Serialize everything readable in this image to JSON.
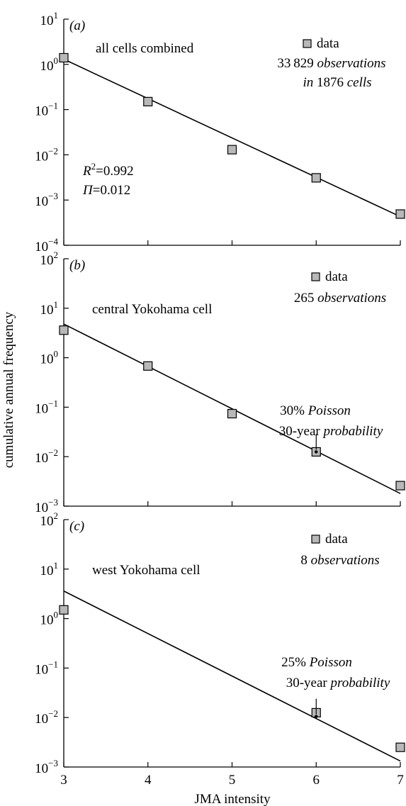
{
  "shared": {
    "ylabel": "cumulative annual frequency",
    "xlabel": "JMA intensity",
    "x_ticks": [
      3,
      4,
      5,
      6,
      7
    ]
  },
  "chart_data": [
    {
      "type": "scatter",
      "panel_label": "(a)",
      "title": "all cells combined",
      "yscale": "log",
      "xlim": [
        3,
        7
      ],
      "ylim": [
        0.0001,
        10
      ],
      "y_ticks": [
        {
          "value": 10,
          "base": "10",
          "exp": "1"
        },
        {
          "value": 1,
          "base": "10",
          "exp": "0"
        },
        {
          "value": 0.1,
          "base": "10",
          "exp": "−1"
        },
        {
          "value": 0.01,
          "base": "10",
          "exp": "−2"
        },
        {
          "value": 0.001,
          "base": "10",
          "exp": "−3"
        },
        {
          "value": 0.0001,
          "base": "10",
          "exp": "−4"
        }
      ],
      "series": [
        {
          "name": "data",
          "x": [
            3,
            4,
            5,
            6,
            7
          ],
          "y": [
            1.4,
            0.15,
            0.013,
            0.0031,
            0.00049
          ]
        }
      ],
      "fit_line": {
        "x": [
          3,
          7
        ],
        "y": [
          1.3,
          0.00043
        ]
      },
      "legend": {
        "label": "data",
        "line1_number": "33 829",
        "line1_word": "observations",
        "line2_prefix": "in",
        "line2_number": "1876",
        "line2_word": "cells"
      },
      "stats": {
        "r2_label": "R",
        "r2_sup": "2",
        "r2_value": "=0.992",
        "pi_label": "Π",
        "pi_value": "=0.012"
      }
    },
    {
      "type": "scatter",
      "panel_label": "(b)",
      "title": "central Yokohama cell",
      "yscale": "log",
      "xlim": [
        3,
        7
      ],
      "ylim": [
        0.001,
        100
      ],
      "y_ticks": [
        {
          "value": 100,
          "base": "10",
          "exp": "2"
        },
        {
          "value": 10,
          "base": "10",
          "exp": "1"
        },
        {
          "value": 1,
          "base": "10",
          "exp": "0"
        },
        {
          "value": 0.1,
          "base": "10",
          "exp": "−1"
        },
        {
          "value": 0.01,
          "base": "10",
          "exp": "−2"
        },
        {
          "value": 0.001,
          "base": "10",
          "exp": "−3"
        }
      ],
      "series": [
        {
          "name": "data",
          "x": [
            3,
            4,
            5,
            6,
            7
          ],
          "y": [
            3.6,
            0.68,
            0.074,
            0.0125,
            0.0026
          ]
        }
      ],
      "fit_line": {
        "x": [
          3,
          7
        ],
        "y": [
          4.8,
          0.0018
        ]
      },
      "legend": {
        "label": "data",
        "line1_number": "265",
        "line1_word": "observations"
      },
      "annotation": {
        "x": 6,
        "y": 0.0125,
        "line1_pct": "30%",
        "line1_word": "Poisson",
        "line2_prefix": "30-year",
        "line2_word": "probability"
      }
    },
    {
      "type": "scatter",
      "panel_label": "(c)",
      "title": "west Yokohama cell",
      "yscale": "log",
      "xlim": [
        3,
        7
      ],
      "ylim": [
        0.001,
        100
      ],
      "y_ticks": [
        {
          "value": 100,
          "base": "10",
          "exp": "2"
        },
        {
          "value": 10,
          "base": "10",
          "exp": "1"
        },
        {
          "value": 1,
          "base": "10",
          "exp": "0"
        },
        {
          "value": 0.1,
          "base": "10",
          "exp": "−1"
        },
        {
          "value": 0.01,
          "base": "10",
          "exp": "−2"
        },
        {
          "value": 0.001,
          "base": "10",
          "exp": "−3"
        }
      ],
      "series": [
        {
          "name": "data",
          "x": [
            3,
            6,
            7
          ],
          "y": [
            1.5,
            0.0125,
            0.0025
          ]
        }
      ],
      "fit_line": {
        "x": [
          3,
          7
        ],
        "y": [
          3.6,
          0.00132
        ]
      },
      "legend": {
        "label": "data",
        "line1_number": "8",
        "line1_word": "observations"
      },
      "annotation": {
        "x": 6,
        "y": 0.0105,
        "line1_pct": "25%",
        "line1_word": "Poisson",
        "line2_prefix": "30-year",
        "line2_word": "probability"
      }
    }
  ]
}
